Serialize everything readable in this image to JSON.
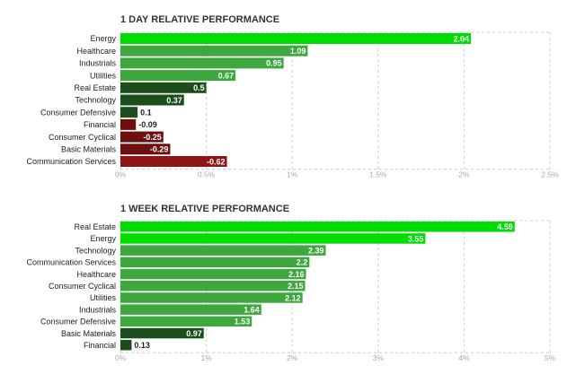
{
  "colors": {
    "bright_green": "#00dd00",
    "green": "#3ea83e",
    "dark_green": "#1b4e1b",
    "dark_red": "#6b0f0f",
    "red": "#8e1515",
    "grid": "#cccccc",
    "tick_text": "#aaaaaa"
  },
  "chart_data": [
    {
      "type": "bar",
      "orientation": "horizontal",
      "title": "1 DAY RELATIVE PERFORMANCE",
      "categories": [
        "Energy",
        "Healthcare",
        "Industrials",
        "Utilities",
        "Real Estate",
        "Technology",
        "Consumer Defensive",
        "Financial",
        "Consumer Cyclical",
        "Basic Materials",
        "Communication Services"
      ],
      "values": [
        2.04,
        1.09,
        0.95,
        0.67,
        0.5,
        0.37,
        0.1,
        -0.09,
        -0.25,
        -0.29,
        -0.62
      ],
      "value_labels": [
        "2.04",
        "1.09",
        "0.95",
        "0.67",
        "0.5",
        "0.37",
        "0.1",
        "-0.09",
        "-0.25",
        "-0.29",
        "-0.62"
      ],
      "xlim": [
        0,
        2.5
      ],
      "xticks": [
        "0%",
        "0.5%",
        "1%",
        "1.5%",
        "2%",
        "2.5%"
      ],
      "grid": true
    },
    {
      "type": "bar",
      "orientation": "horizontal",
      "title": "1 WEEK RELATIVE PERFORMANCE",
      "categories": [
        "Real Estate",
        "Energy",
        "Technology",
        "Communication Services",
        "Healthcare",
        "Consumer Cyclical",
        "Utilities",
        "Industrials",
        "Consumer Defensive",
        "Basic Materials",
        "Financial"
      ],
      "values": [
        4.59,
        3.55,
        2.39,
        2.2,
        2.16,
        2.15,
        2.12,
        1.64,
        1.53,
        0.97,
        0.13
      ],
      "value_labels": [
        "4.59",
        "3.55",
        "2.39",
        "2.2",
        "2.16",
        "2.15",
        "2.12",
        "1.64",
        "1.53",
        "0.97",
        "0.13"
      ],
      "xlim": [
        0,
        5
      ],
      "xticks": [
        "0%",
        "1%",
        "2%",
        "3%",
        "4%",
        "5%"
      ],
      "grid": true
    }
  ]
}
